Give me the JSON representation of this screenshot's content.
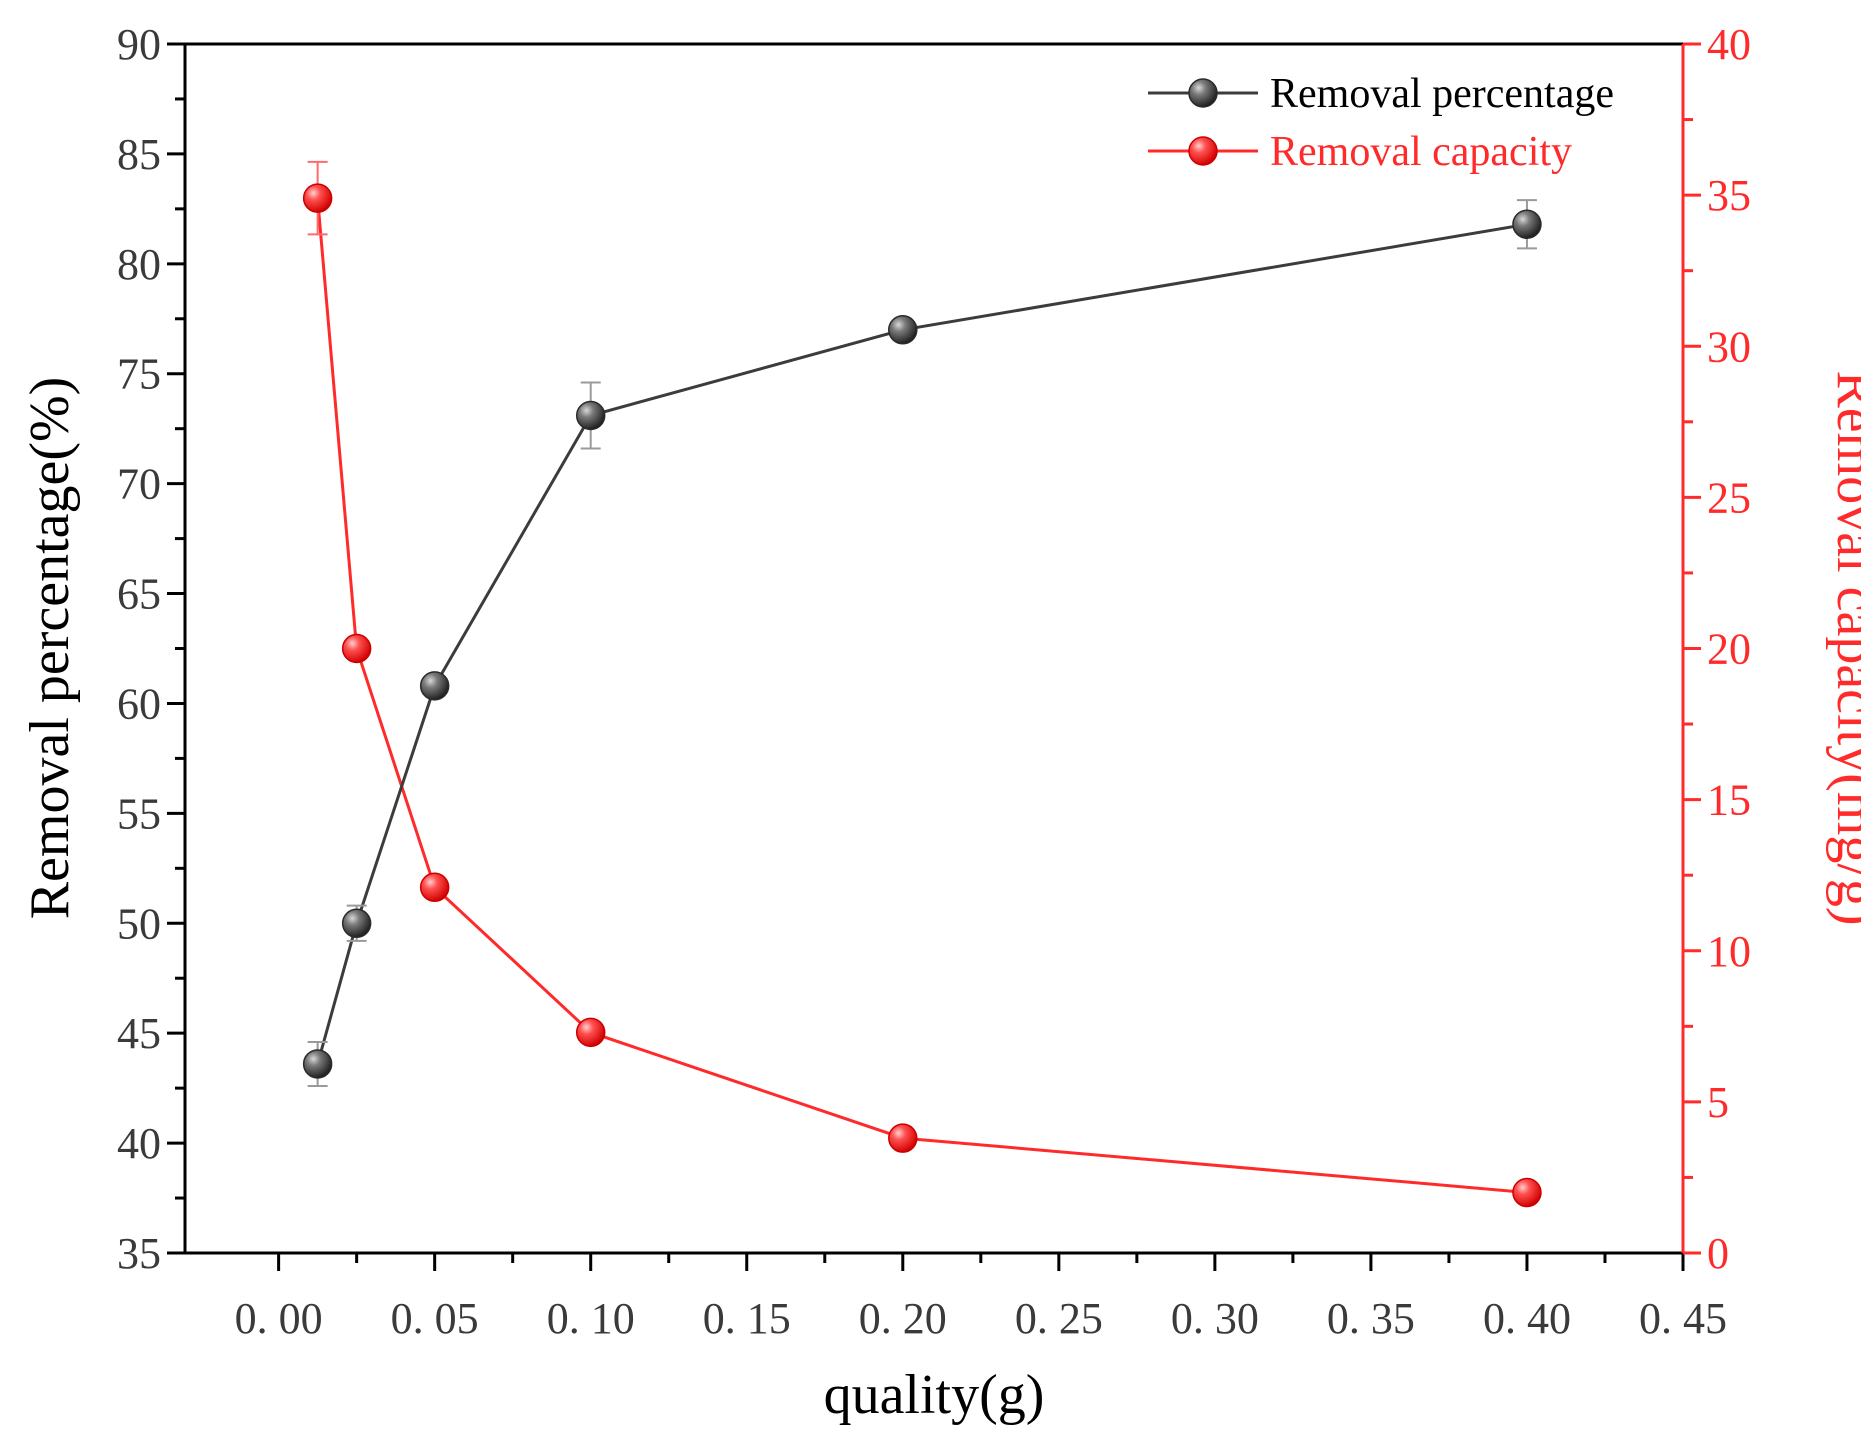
{
  "chart_data": {
    "type": "line",
    "xlabel": "quality(g)",
    "ylabel_left": "Removal percentage(%)",
    "ylabel_right": "Removal capacity(mg/g)",
    "xlim": [
      -0.03,
      0.45
    ],
    "ylim_left": [
      35,
      90
    ],
    "ylim_right": [
      0,
      40
    ],
    "x_ticks": [
      0.0,
      0.05,
      0.1,
      0.15,
      0.2,
      0.25,
      0.3,
      0.35,
      0.4,
      0.45
    ],
    "x_tick_labels": [
      "0. 00",
      "0. 05",
      "0. 10",
      "0. 15",
      "0. 20",
      "0. 25",
      "0. 30",
      "0. 35",
      "0. 40",
      "0. 45"
    ],
    "y_left_ticks": [
      35,
      40,
      45,
      50,
      55,
      60,
      65,
      70,
      75,
      80,
      85,
      90
    ],
    "y_left_tick_labels": [
      "35",
      "40",
      "45",
      "50",
      "55",
      "60",
      "65",
      "70",
      "75",
      "80",
      "85",
      "90"
    ],
    "y_right_ticks": [
      0,
      5,
      10,
      15,
      20,
      25,
      30,
      35,
      40
    ],
    "y_right_tick_labels": [
      "0",
      "5",
      "10",
      "15",
      "20",
      "25",
      "30",
      "35",
      "40"
    ],
    "legend_position": "top-right",
    "series": [
      {
        "name": "Removal percentage",
        "axis": "left",
        "color": "#3c3c3c",
        "x": [
          0.0125,
          0.025,
          0.05,
          0.1,
          0.2,
          0.4
        ],
        "y": [
          43.6,
          50.0,
          60.8,
          73.1,
          77.0,
          81.8
        ],
        "error": [
          1.0,
          0.8,
          0.0,
          1.5,
          0.0,
          1.1
        ]
      },
      {
        "name": "Removal capacity",
        "axis": "right",
        "color": "#ff2a2a",
        "x": [
          0.0125,
          0.025,
          0.05,
          0.1,
          0.2,
          0.4
        ],
        "y": [
          34.9,
          20.0,
          12.1,
          7.3,
          3.8,
          2.0
        ],
        "error": [
          1.2,
          0.0,
          0.0,
          0.0,
          0.0,
          0.0
        ]
      }
    ]
  }
}
